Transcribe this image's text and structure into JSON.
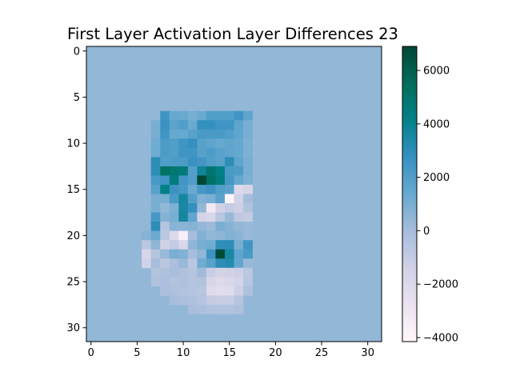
{
  "chart_data": {
    "type": "heatmap",
    "title": "First Layer Activation Layer Differences 23",
    "xlabel": "",
    "ylabel": "",
    "rows": 32,
    "cols": 32,
    "background_value": 400,
    "xlim": [
      -0.5,
      31.5
    ],
    "ylim": [
      31.5,
      -0.5
    ],
    "x_ticks": [
      0,
      5,
      10,
      15,
      20,
      25,
      30
    ],
    "y_ticks": [
      0,
      5,
      10,
      15,
      20,
      25,
      30
    ],
    "colormap": "PuBuGn",
    "colorbar": {
      "range": [
        -4150,
        6900
      ],
      "ticks": [
        -4000,
        -2000,
        0,
        2000,
        4000,
        6000
      ],
      "tick_labels": [
        "−4000",
        "−2000",
        "0",
        "2000",
        "4000",
        "6000"
      ]
    },
    "cell_rows": [
      {
        "y": 7,
        "x0": 8,
        "values": [
          2500,
          1400,
          1300,
          1000,
          1300,
          2000,
          2000,
          2000,
          2500,
          1600
        ]
      },
      {
        "y": 8,
        "x0": 7,
        "values": [
          1000,
          2600,
          1700,
          2000,
          1300,
          2800,
          2800,
          2500,
          2500,
          1600,
          1000
        ]
      },
      {
        "y": 9,
        "x0": 7,
        "values": [
          1000,
          2500,
          1400,
          1400,
          1800,
          2200,
          2200,
          2200,
          2000,
          1600,
          1000
        ]
      },
      {
        "y": 10,
        "x0": 7,
        "values": [
          1200,
          2100,
          2000,
          2500,
          2800,
          1800,
          1600,
          1400,
          1600,
          1400,
          900
        ]
      },
      {
        "y": 11,
        "x0": 7,
        "values": [
          1200,
          2100,
          2000,
          2500,
          2500,
          1800,
          2100,
          1800,
          1600,
          1400,
          900
        ]
      },
      {
        "y": 12,
        "x0": 7,
        "values": [
          3000,
          2000,
          2100,
          2100,
          2700,
          2400,
          2000,
          1800,
          3000,
          1600,
          1000
        ]
      },
      {
        "y": 13,
        "x0": 7,
        "values": [
          3000,
          5200,
          4800,
          4600,
          1900,
          3800,
          4800,
          4200,
          2200,
          2100,
          1000
        ]
      },
      {
        "y": 14,
        "x0": 7,
        "values": [
          2300,
          2500,
          4500,
          2400,
          2000,
          6900,
          5200,
          4400,
          2300,
          1400,
          900
        ]
      },
      {
        "y": 15,
        "x0": 7,
        "values": [
          1800,
          4200,
          2600,
          2300,
          1300,
          2300,
          2600,
          2000,
          1700,
          -2000,
          -1700
        ]
      },
      {
        "y": 16,
        "x0": 7,
        "values": [
          1000,
          1000,
          2200,
          3600,
          1900,
          800,
          1000,
          1800,
          -4000,
          -1500,
          0
        ]
      },
      {
        "y": 17,
        "x0": 7,
        "values": [
          1000,
          400,
          900,
          3500,
          2800,
          400,
          -3200,
          -1500,
          -1000,
          -1300,
          -400
        ]
      },
      {
        "y": 18,
        "x0": 7,
        "values": [
          2300,
          700,
          1000,
          3600,
          1600,
          -1600,
          -1800,
          -600,
          300,
          -800,
          -1000
        ]
      },
      {
        "y": 19,
        "x0": 7,
        "values": [
          3000,
          -500,
          600,
          600,
          700,
          400,
          200,
          1000,
          700,
          400,
          300
        ]
      },
      {
        "y": 20,
        "x0": 6,
        "values": [
          700,
          1300,
          -700,
          -2000,
          -3600,
          0,
          800,
          400,
          500,
          800,
          600,
          300
        ]
      },
      {
        "y": 21,
        "x0": 6,
        "values": [
          -700,
          500,
          -1500,
          -1000,
          -1800,
          500,
          1000,
          1200,
          2900,
          3000,
          1000,
          2400
        ]
      },
      {
        "y": 22,
        "x0": 6,
        "values": [
          -1800,
          -500,
          300,
          1000,
          800,
          0,
          500,
          2600,
          6800,
          3500,
          1600,
          2200
        ]
      },
      {
        "y": 23,
        "x0": 6,
        "values": [
          -1500,
          0,
          -700,
          -200,
          300,
          -700,
          1200,
          1800,
          3000,
          3200,
          1500,
          300
        ]
      },
      {
        "y": 24,
        "x0": 7,
        "values": [
          -400,
          -300,
          -100,
          -300,
          -500,
          100,
          -1200,
          -1600,
          -1400,
          -1300,
          -700
        ]
      },
      {
        "y": 25,
        "x0": 7,
        "values": [
          -300,
          -200,
          -400,
          -300,
          -500,
          -400,
          -1800,
          -2100,
          -1900,
          -1600,
          -600
        ]
      },
      {
        "y": 26,
        "x0": 8,
        "values": [
          -200,
          -300,
          -400,
          -500,
          -600,
          -2100,
          -2300,
          -2200,
          -1300,
          -300
        ]
      },
      {
        "y": 27,
        "x0": 9,
        "values": [
          -100,
          -200,
          -300,
          -500,
          -1000,
          -1200,
          -1100,
          -500
        ]
      },
      {
        "y": 28,
        "x0": 11,
        "values": [
          -100,
          -200,
          -300,
          -400,
          -400,
          -300
        ]
      }
    ]
  }
}
